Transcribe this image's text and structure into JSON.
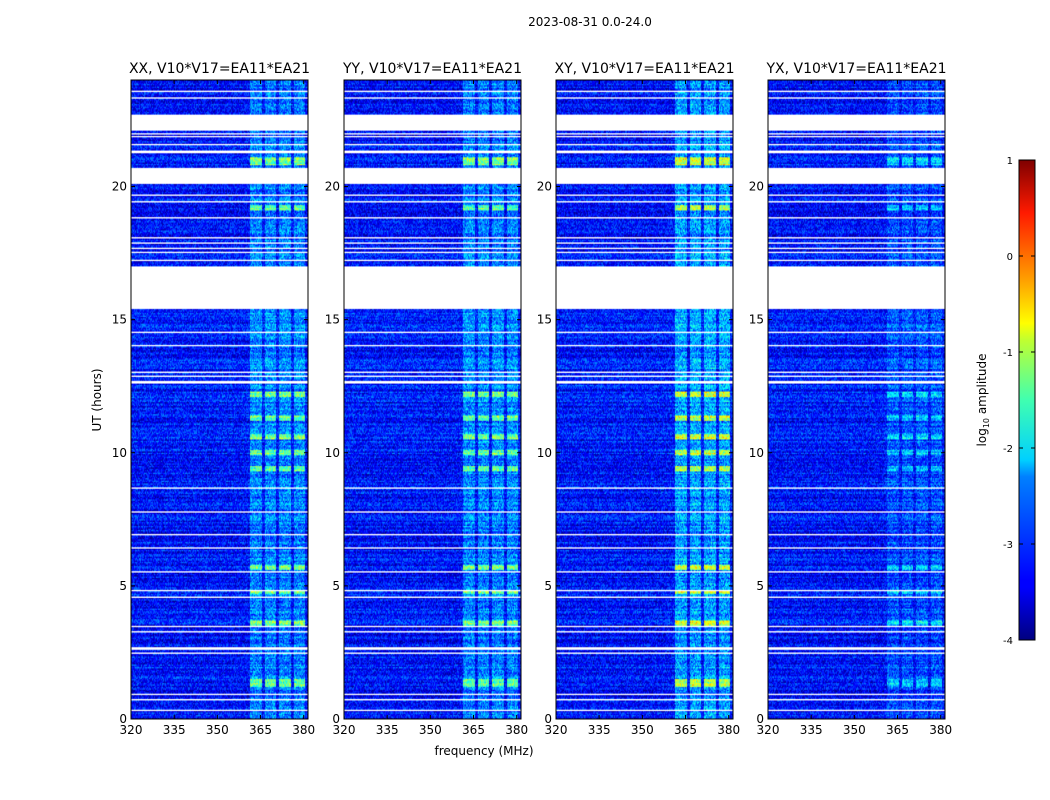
{
  "chart_data": {
    "type": "heatmap",
    "suptitle": "2023-08-31 0.0-24.0",
    "xlabel": "frequency (MHz)",
    "ylabel": "UT (hours)",
    "xlim": [
      320,
      381.5
    ],
    "ylim": [
      0,
      24
    ],
    "xticks": [
      320,
      335,
      350,
      365,
      380
    ],
    "yticks": [
      0,
      5,
      10,
      15,
      20
    ],
    "colorbar": {
      "label": "log$_{10}$ amplitude",
      "label_main": "log",
      "label_sub": "10",
      "label_rest": " amplitude",
      "range": [
        -4,
        1
      ],
      "ticks": [
        1,
        0,
        -1,
        -2,
        -3,
        -4
      ],
      "colormap": "jet"
    },
    "panels": [
      {
        "title": "XX, V10*V17=EA11*EA21",
        "rfi_strength": 1.0
      },
      {
        "title": "YY, V10*V17=EA11*EA21",
        "rfi_strength": 1.0
      },
      {
        "title": "XY, V10*V17=EA11*EA21",
        "rfi_strength": 1.25
      },
      {
        "title": "YX, V10*V17=EA11*EA21",
        "rfi_strength": 0.55
      }
    ],
    "typical_amplitude_log10": -3.3,
    "rfi_frequency_bands_mhz": [
      [
        361.5,
        365.5
      ],
      [
        366.5,
        370.5
      ],
      [
        371.5,
        375.5
      ],
      [
        376.5,
        380.5
      ]
    ],
    "flagged_time_ranges_hours": [
      [
        22.1,
        22.7
      ],
      [
        20.1,
        20.7
      ],
      [
        15.4,
        17.0
      ],
      [
        21.25,
        21.35
      ],
      [
        21.55,
        21.6
      ],
      [
        21.85,
        21.9
      ],
      [
        21.95,
        22.0
      ],
      [
        19.65,
        19.7
      ],
      [
        19.4,
        19.45
      ],
      [
        18.8,
        18.85
      ],
      [
        18.05,
        18.1
      ],
      [
        17.85,
        17.9
      ],
      [
        17.65,
        17.7
      ],
      [
        17.5,
        17.55
      ],
      [
        17.2,
        17.25
      ],
      [
        14.5,
        14.55
      ],
      [
        14.0,
        14.05
      ],
      [
        13.0,
        13.05
      ],
      [
        12.6,
        12.7
      ],
      [
        12.85,
        12.9
      ],
      [
        8.65,
        8.7
      ],
      [
        7.75,
        7.8
      ],
      [
        6.9,
        6.95
      ],
      [
        6.4,
        6.45
      ],
      [
        5.5,
        5.55
      ],
      [
        4.8,
        4.85
      ],
      [
        4.55,
        4.6
      ],
      [
        3.45,
        3.5
      ],
      [
        3.25,
        3.3
      ],
      [
        2.6,
        2.7
      ],
      [
        2.45,
        2.5
      ],
      [
        0.9,
        0.95
      ],
      [
        0.7,
        0.75
      ],
      [
        0.3,
        0.35
      ],
      [
        23.3,
        23.35
      ],
      [
        23.55,
        23.6
      ]
    ],
    "bright_rfi_time_ranges_hours": [
      [
        20.8,
        21.1
      ],
      [
        19.1,
        19.3
      ],
      [
        12.1,
        12.3
      ],
      [
        10.5,
        10.7
      ],
      [
        11.2,
        11.4
      ],
      [
        9.9,
        10.1
      ],
      [
        9.3,
        9.5
      ],
      [
        5.6,
        5.8
      ],
      [
        4.7,
        4.8
      ],
      [
        3.5,
        3.7
      ],
      [
        1.2,
        1.5
      ]
    ]
  }
}
